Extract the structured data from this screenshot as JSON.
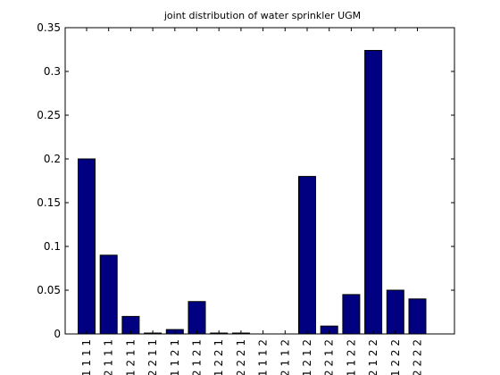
{
  "chart_data": {
    "type": "bar",
    "title": "joint distribution of water sprinkler UGM",
    "xlabel": "",
    "ylabel": "",
    "ylim": [
      0,
      0.35
    ],
    "yticks": [
      0,
      0.05,
      0.1,
      0.15,
      0.2,
      0.25,
      0.3,
      0.35
    ],
    "ytick_labels": [
      "0",
      "0.05",
      "0.1",
      "0.15",
      "0.2",
      "0.25",
      "0.3",
      "0.35"
    ],
    "categories": [
      "1 1 1 1",
      "2 1 1 1",
      "1 2 1 1",
      "2 2 1 1",
      "1 1 2 1",
      "2 1 2 1",
      "1 2 2 1",
      "2 2 2 1",
      "1 1 1 2",
      "2 1 1 2",
      "1 2 1 2",
      "2 2 1 2",
      "1 1 2 2",
      "2 1 2 2",
      "1 2 2 2",
      "2 2 2 2"
    ],
    "values": [
      0.2,
      0.09,
      0.02,
      0.001,
      0.005,
      0.037,
      0.001,
      0.001,
      0.0,
      0.0,
      0.18,
      0.009,
      0.045,
      0.324,
      0.05,
      0.04
    ],
    "bar_color": "#000080",
    "grid": false,
    "legend": "none"
  }
}
